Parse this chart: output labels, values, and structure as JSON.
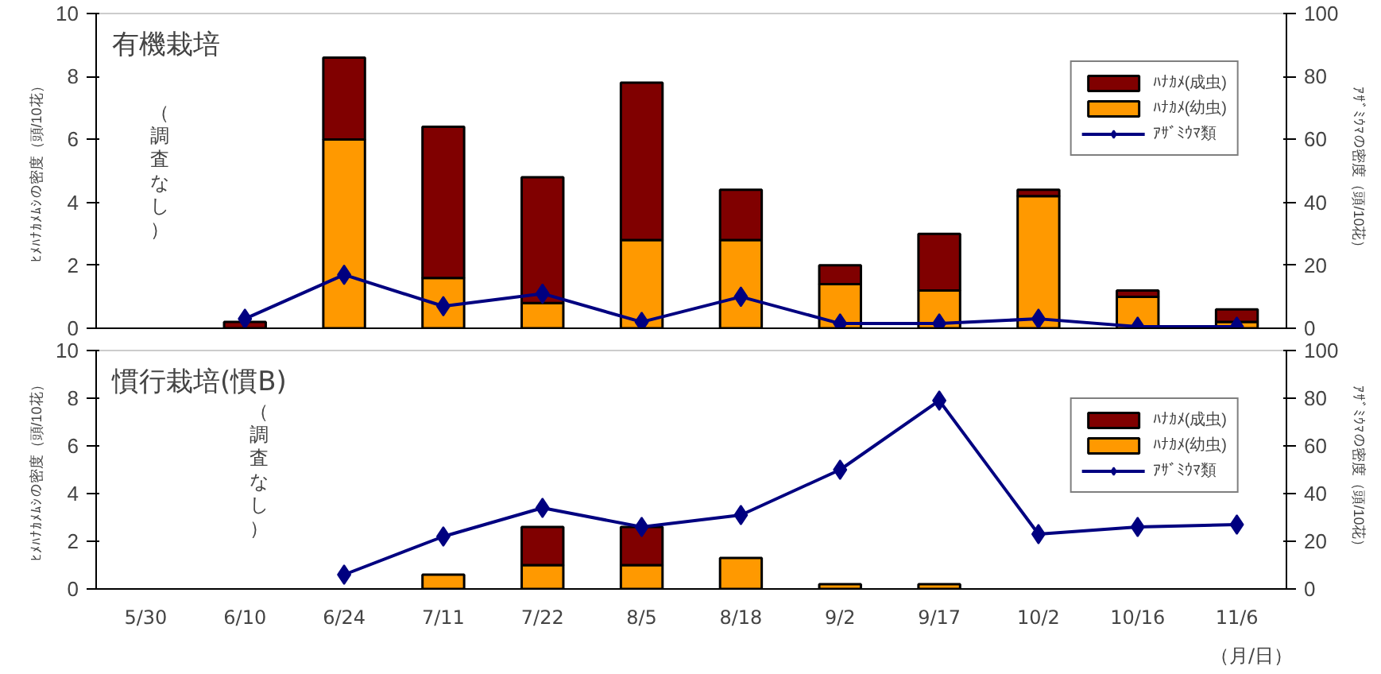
{
  "chart_data": [
    {
      "type": "bar",
      "title": "有機栽培",
      "ylabel": "ﾋﾒﾊﾅｶﾒﾑｼの密度（頭/10花）",
      "y2label": "ｱｻﾞﾐｳﾏの密度（頭/10花）",
      "categories": [
        null,
        null,
        null,
        null,
        null,
        null,
        null,
        null,
        null,
        null,
        null,
        null
      ],
      "stacked": true,
      "ylim": [
        0,
        10
      ],
      "yticks": [
        0,
        2,
        4,
        6,
        8,
        10
      ],
      "y2lim": [
        0,
        100
      ],
      "y2ticks": [
        0,
        20,
        40,
        60,
        80,
        100
      ],
      "tick_labels": "y",
      "grid": false,
      "legend": "top right",
      "series": [
        {
          "name": "ﾊﾅｶﾒ(幼虫)",
          "color": "#ff9900",
          "values": [
            null,
            null,
            6.0,
            1.6,
            0.8,
            2.8,
            2.8,
            1.4,
            1.2,
            4.2,
            1.0,
            0.2
          ]
        },
        {
          "name": "ﾊﾅｶﾒ(成虫)",
          "color": "#800000",
          "values": [
            null,
            0.2,
            2.6,
            4.8,
            4.0,
            5.0,
            1.6,
            0.6,
            1.8,
            0.2,
            0.2,
            0.4
          ]
        },
        {
          "name": "ｱｻﾞﾐｳﾏ類",
          "type": "line",
          "axis": "y2",
          "marker": "diamond",
          "color": "#000080",
          "values": [
            null,
            3,
            17,
            7,
            11,
            2,
            10,
            1.5,
            1.5,
            3,
            0.5,
            0.5
          ]
        }
      ],
      "annotations": [
        "（調査なし）"
      ]
    },
    {
      "type": "bar",
      "title": "慣行栽培(慣B)",
      "ylabel": "ﾋﾒﾊﾅｶﾒﾑｼの密度（頭/10花）",
      "y2label": "ｱｻﾞﾐｳﾏの密度（頭/10花）",
      "categories": [
        "5/30",
        "6/10",
        "6/24",
        "7/11",
        "7/22",
        "8/5",
        "8/18",
        "9/2",
        "9/17",
        "10/2",
        "10/16",
        "11/6"
      ],
      "stacked": true,
      "ylim": [
        0,
        10
      ],
      "yticks": [
        0,
        2,
        4,
        6,
        8,
        10
      ],
      "y2lim": [
        0,
        100
      ],
      "y2ticks": [
        0,
        20,
        40,
        60,
        80,
        100
      ],
      "grid": false,
      "legend": "top right",
      "series": [
        {
          "name": "ﾊﾅｶﾒ(幼虫)",
          "color": "#ff9900",
          "values": [
            null,
            null,
            null,
            0.6,
            1.0,
            1.0,
            1.3,
            0.2,
            0.2,
            null,
            null,
            null
          ]
        },
        {
          "name": "ﾊﾅｶﾒ(成虫)",
          "color": "#800000",
          "values": [
            null,
            null,
            null,
            null,
            1.6,
            1.6,
            null,
            null,
            null,
            null,
            null,
            null
          ]
        },
        {
          "name": "ｱｻﾞﾐｳﾏ類",
          "type": "line",
          "axis": "y2",
          "marker": "diamond",
          "color": "#000080",
          "values": [
            null,
            null,
            6,
            22,
            34,
            26,
            31,
            50,
            79,
            23,
            26,
            27
          ]
        }
      ],
      "annotations": [
        "（調査なし）",
        "（月/日）"
      ]
    }
  ]
}
